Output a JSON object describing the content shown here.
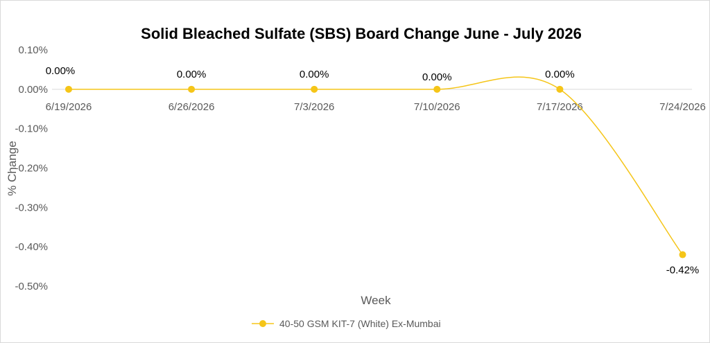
{
  "chart_data": {
    "type": "line",
    "title": "Solid Bleached Sulfate (SBS) Board Change June - July 2026",
    "xlabel": "Week",
    "ylabel": "% Change",
    "categories": [
      "6/19/2026",
      "6/26/2026",
      "7/3/2026",
      "7/10/2026",
      "7/17/2026",
      "7/24/2026"
    ],
    "y_ticks": [
      "0.10%",
      "0.00%",
      "-0.10%",
      "-0.20%",
      "-0.30%",
      "-0.40%",
      "-0.50%"
    ],
    "ylim": [
      -0.5,
      0.1
    ],
    "grid": false,
    "legend_position": "bottom",
    "smoothed": true,
    "series": [
      {
        "name": "40-50 GSM KIT-7 (White) Ex-Mumbai",
        "color": "#f5c518",
        "values": [
          0.0,
          0.0,
          0.0,
          0.0,
          0.0,
          -0.42
        ],
        "labels": [
          "0.00%",
          "0.00%",
          "0.00%",
          "0.00%",
          "0.00%",
          "-0.42%"
        ]
      }
    ]
  }
}
